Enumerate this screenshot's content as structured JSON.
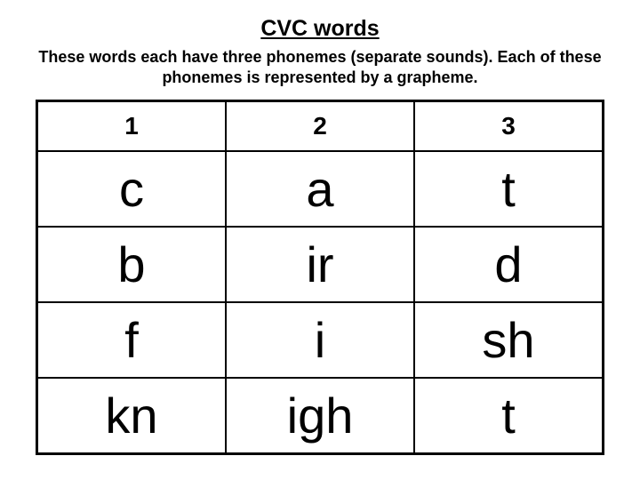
{
  "title": "CVC words",
  "description": "These words each have three phonemes (separate sounds). Each of these phonemes is represented by a grapheme.",
  "table": {
    "headers": [
      "1",
      "2",
      "3"
    ],
    "rows": [
      [
        "c",
        "a",
        "t"
      ],
      [
        "b",
        "ir",
        "d"
      ],
      [
        "f",
        "i",
        "sh"
      ],
      [
        "kn",
        "igh",
        "t"
      ]
    ],
    "border_color": "#000000",
    "header_fontsize": 28,
    "cell_fontsize": 56,
    "header_fontweight": "bold",
    "cell_fontweight": "normal"
  },
  "background_color": "#ffffff",
  "text_color": "#000000",
  "title_fontsize": 25,
  "description_fontsize": 18
}
